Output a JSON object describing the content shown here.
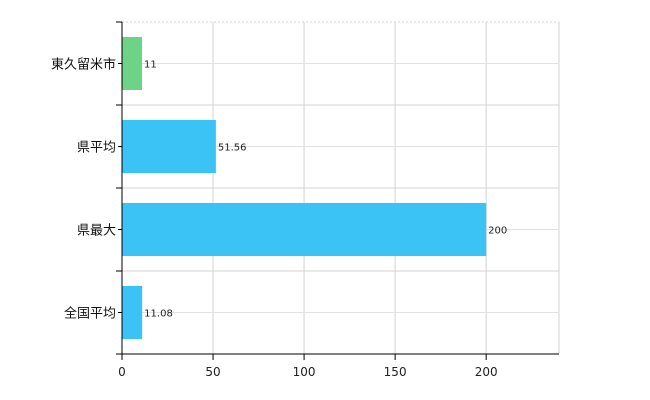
{
  "chart_data": {
    "type": "bar",
    "orientation": "horizontal",
    "categories": [
      "東久留米市",
      "県平均",
      "県最大",
      "全国平均"
    ],
    "values": [
      11,
      51.56,
      200,
      11.08
    ],
    "value_labels": [
      "11",
      "51.56",
      "200",
      "11.08"
    ],
    "colors": [
      "#6dd387",
      "#3cc3f5",
      "#3cc3f5",
      "#3cc3f5"
    ],
    "xlim": [
      0,
      240
    ],
    "x_ticks": [
      0,
      50,
      100,
      150,
      200
    ],
    "x_tick_labels": [
      "0",
      "50",
      "100",
      "150",
      "200"
    ],
    "grid": true,
    "title": "",
    "xlabel": "",
    "ylabel": ""
  }
}
